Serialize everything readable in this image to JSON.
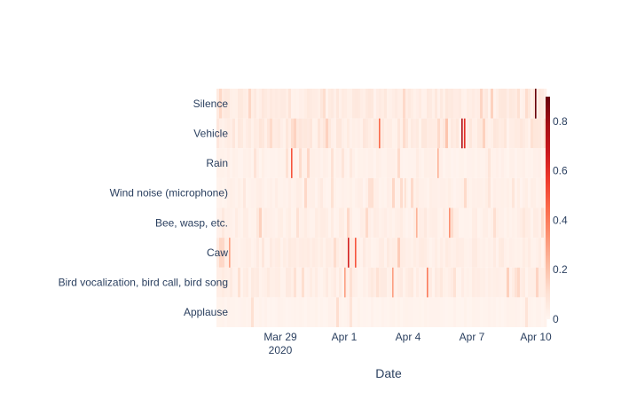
{
  "chart_data": {
    "type": "heatmap",
    "title": "",
    "xlabel": "Date",
    "ylabel": "",
    "x_range": [
      "2020-03-26",
      "2020-04-10"
    ],
    "x_ticks": [
      {
        "date": "2020-03-29",
        "label": "Mar 29",
        "sublabel": "2020"
      },
      {
        "date": "2020-04-01",
        "label": "Apr 1",
        "sublabel": ""
      },
      {
        "date": "2020-04-04",
        "label": "Apr 4",
        "sublabel": ""
      },
      {
        "date": "2020-04-07",
        "label": "Apr 7",
        "sublabel": ""
      },
      {
        "date": "2020-04-10",
        "label": "Apr 10",
        "sublabel": ""
      }
    ],
    "categories": [
      "Silence",
      "Vehicle",
      "Rain",
      "Wind noise (microphone)",
      "Bee, wasp, etc.",
      "Caw",
      "Bird vocalization, bird call, bird song",
      "Applause"
    ],
    "colorscale": [
      "#fff5f0",
      "#fee0d2",
      "#fcbba1",
      "#fc9272",
      "#fb6a4a",
      "#ef3b2c",
      "#cb181d",
      "#a50f15",
      "#67000d"
    ],
    "zlim": [
      0,
      0.9
    ],
    "colorbar_ticks": [
      0,
      0.2,
      0.4,
      0.6,
      0.8
    ],
    "colorbar_tick_labels": [
      "0",
      "0.2",
      "0.4",
      "0.6",
      "0.8"
    ],
    "peaks": [
      {
        "category": "Silence",
        "date": "2020-04-09 23:00",
        "value": 0.9
      },
      {
        "category": "Vehicle",
        "date": "2020-04-06 12:00",
        "value": 0.75
      },
      {
        "category": "Vehicle",
        "date": "2020-04-06 15:00",
        "value": 0.6
      },
      {
        "category": "Vehicle",
        "date": "2020-04-02 15:00",
        "value": 0.45
      },
      {
        "category": "Rain",
        "date": "2020-03-29 12:00",
        "value": 0.5
      },
      {
        "category": "Rain",
        "date": "2020-04-05 09:00",
        "value": 0.25
      },
      {
        "category": "Wind noise (microphone)",
        "date": "2020-04-03 20:00",
        "value": 0.12
      },
      {
        "category": "Bee, wasp, etc.",
        "date": "2020-04-05 22:00",
        "value": 0.35
      },
      {
        "category": "Bee, wasp, etc.",
        "date": "2020-04-04 09:00",
        "value": 0.25
      },
      {
        "category": "Caw",
        "date": "2020-04-01 04:00",
        "value": 0.65
      },
      {
        "category": "Caw",
        "date": "2020-04-01 12:00",
        "value": 0.5
      },
      {
        "category": "Caw",
        "date": "2020-03-26 14:00",
        "value": 0.3
      },
      {
        "category": "Bird vocalization, bird call, bird song",
        "date": "2020-04-04 21:00",
        "value": 0.4
      },
      {
        "category": "Bird vocalization, bird call, bird song",
        "date": "2020-04-03 06:00",
        "value": 0.3
      },
      {
        "category": "Bird vocalization, bird call, bird song",
        "date": "2020-04-01 00:00",
        "value": 0.3
      }
    ]
  }
}
